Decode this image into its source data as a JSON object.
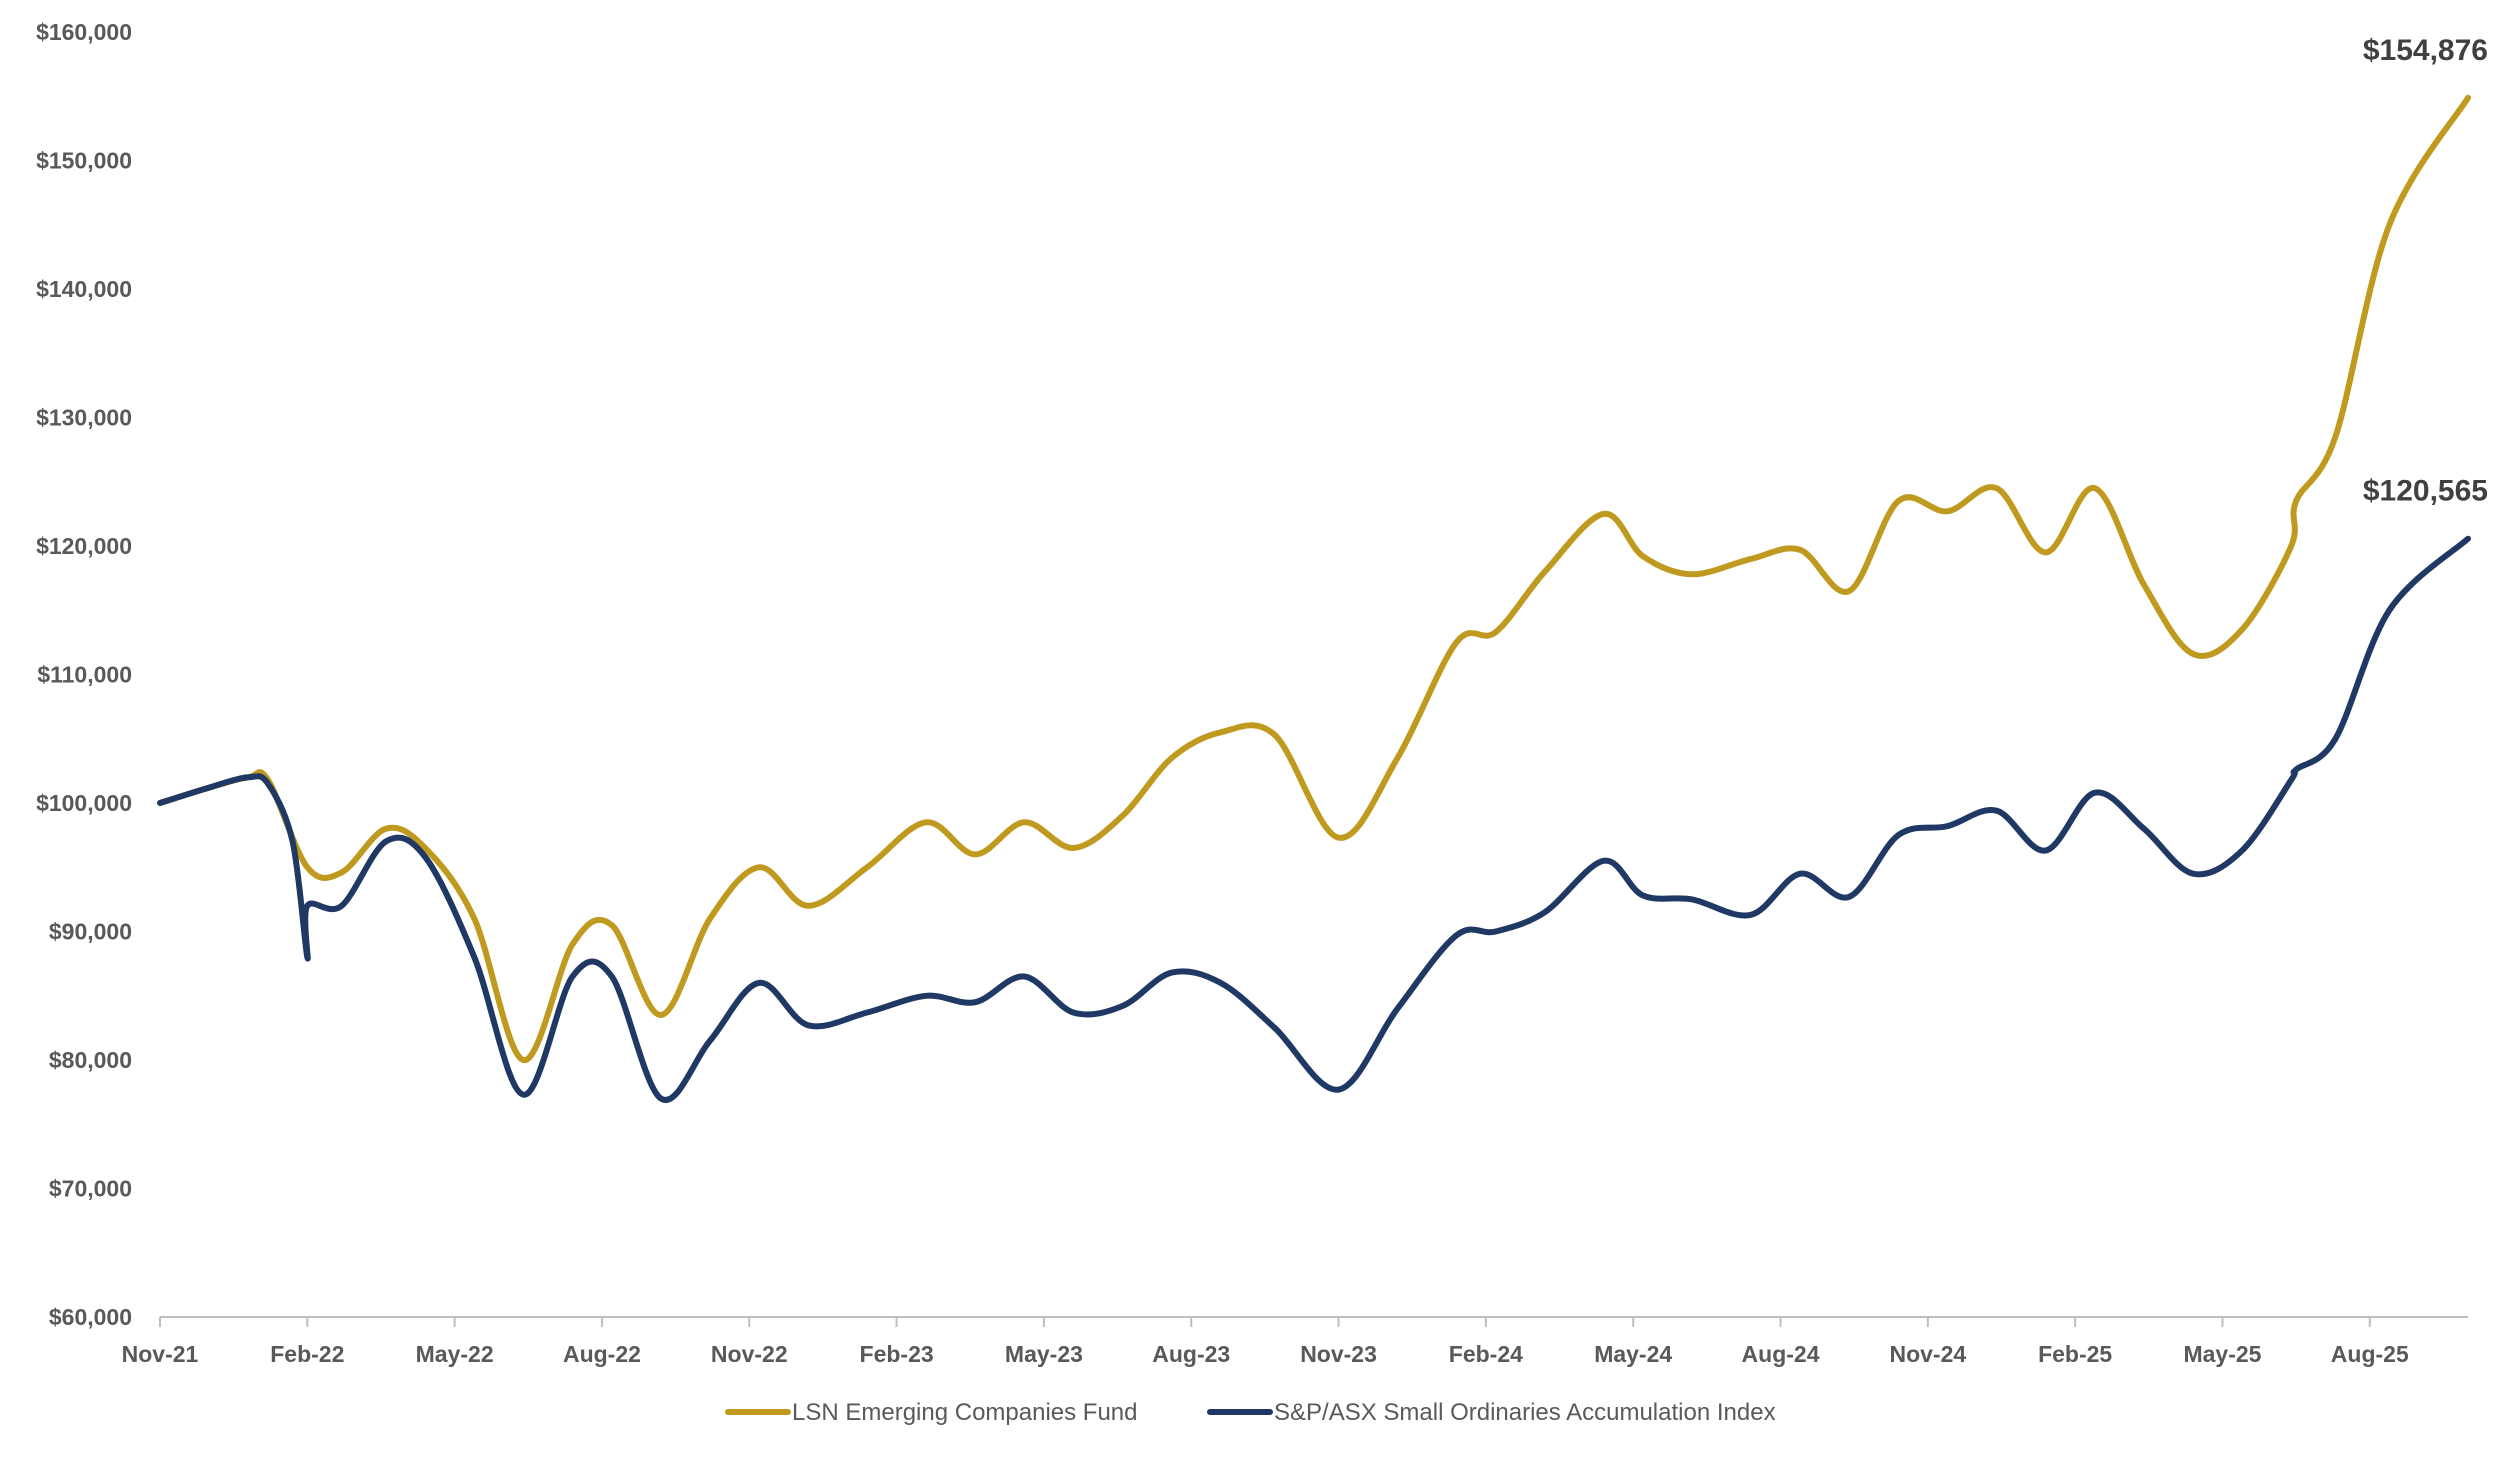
{
  "colors": {
    "fund": "#bf9a1f",
    "index": "#1f3864",
    "axis": "#bfbfbf",
    "text": "#595959"
  },
  "chart_data": {
    "type": "line",
    "ylim": [
      60000,
      160000
    ],
    "y_ticks": [
      "$60,000",
      "$70,000",
      "$80,000",
      "$90,000",
      "$100,000",
      "$110,000",
      "$120,000",
      "$130,000",
      "$140,000",
      "$150,000",
      "$160,000"
    ],
    "x_ticks": [
      "Nov-21",
      "Feb-22",
      "May-22",
      "Aug-22",
      "Nov-22",
      "Feb-23",
      "May-23",
      "Aug-23",
      "Nov-23",
      "Feb-24",
      "May-24",
      "Aug-24",
      "Nov-24",
      "Feb-25",
      "May-25",
      "Aug-25"
    ],
    "x_range": [
      0,
      47
    ],
    "grid": false,
    "legend_position": "bottom",
    "series": [
      {
        "name": "LSN Emerging Companies Fund",
        "color": "#bf9a1f",
        "end_label": "$154,876",
        "points": [
          [
            0,
            100000
          ],
          [
            1,
            101200
          ],
          [
            1.8,
            102000
          ],
          [
            2.2,
            101800
          ],
          [
            3,
            95000
          ],
          [
            3.7,
            94600
          ],
          [
            4.6,
            98000
          ],
          [
            5.4,
            96500
          ],
          [
            6.4,
            91000
          ],
          [
            7.4,
            80000
          ],
          [
            8.4,
            89000
          ],
          [
            9.2,
            90500
          ],
          [
            10.2,
            83500
          ],
          [
            11.2,
            91000
          ],
          [
            12.2,
            95000
          ],
          [
            13.2,
            92000
          ],
          [
            14.4,
            95000
          ],
          [
            15.6,
            98500
          ],
          [
            16.6,
            96000
          ],
          [
            17.6,
            98500
          ],
          [
            18.6,
            96500
          ],
          [
            19.6,
            99000
          ],
          [
            20.6,
            103500
          ],
          [
            21.6,
            105500
          ],
          [
            22.7,
            105300
          ],
          [
            24,
            97300
          ],
          [
            25.2,
            103500
          ],
          [
            26.4,
            112500
          ],
          [
            27.2,
            113300
          ],
          [
            28.2,
            118000
          ],
          [
            29.4,
            122500
          ],
          [
            30.2,
            119200
          ],
          [
            31.2,
            117800
          ],
          [
            32.4,
            119000
          ],
          [
            33.4,
            119700
          ],
          [
            34.4,
            116500
          ],
          [
            35.4,
            123500
          ],
          [
            36.4,
            122700
          ],
          [
            37.4,
            124500
          ],
          [
            38.4,
            119500
          ],
          [
            39.4,
            124500
          ],
          [
            40.4,
            117000
          ],
          [
            41.4,
            111600
          ],
          [
            42.4,
            113500
          ],
          [
            43.4,
            120000
          ],
          [
            43.5,
            123500
          ],
          [
            44.3,
            128500
          ],
          [
            45.4,
            145000
          ],
          [
            47,
            154876
          ]
        ]
      },
      {
        "name": "S&P/ASX Small Ordinaries Accumulation Index",
        "color": "#1f3864",
        "end_label": "$120,565",
        "points": [
          [
            0,
            100000
          ],
          [
            1,
            101200
          ],
          [
            1.8,
            102000
          ],
          [
            2.2,
            101500
          ],
          [
            2.7,
            97000
          ],
          [
            3,
            88000
          ],
          [
            3,
            92000
          ],
          [
            3.7,
            92000
          ],
          [
            4.6,
            97000
          ],
          [
            5.4,
            95800
          ],
          [
            6.4,
            88000
          ],
          [
            7.4,
            77300
          ],
          [
            8.4,
            86500
          ],
          [
            9.2,
            86500
          ],
          [
            10.2,
            77000
          ],
          [
            11.2,
            81500
          ],
          [
            12.2,
            86000
          ],
          [
            13.2,
            82700
          ],
          [
            14.4,
            83700
          ],
          [
            15.6,
            85000
          ],
          [
            16.6,
            84500
          ],
          [
            17.6,
            86500
          ],
          [
            18.6,
            83700
          ],
          [
            19.6,
            84200
          ],
          [
            20.6,
            86800
          ],
          [
            21.6,
            86000
          ],
          [
            22.7,
            82500
          ],
          [
            24,
            77700
          ],
          [
            25.2,
            84000
          ],
          [
            26.4,
            89700
          ],
          [
            27.2,
            90000
          ],
          [
            28.2,
            91500
          ],
          [
            29.4,
            95500
          ],
          [
            30.2,
            92800
          ],
          [
            31.2,
            92500
          ],
          [
            32.4,
            91300
          ],
          [
            33.4,
            94500
          ],
          [
            34.4,
            92700
          ],
          [
            35.4,
            97500
          ],
          [
            36.4,
            98200
          ],
          [
            37.4,
            99400
          ],
          [
            38.4,
            96300
          ],
          [
            39.4,
            100800
          ],
          [
            40.4,
            98000
          ],
          [
            41.4,
            94500
          ],
          [
            42.4,
            96300
          ],
          [
            43.4,
            101800
          ],
          [
            43.5,
            102600
          ],
          [
            44.3,
            105000
          ],
          [
            45.4,
            115000
          ],
          [
            47,
            120565
          ]
        ]
      }
    ]
  }
}
